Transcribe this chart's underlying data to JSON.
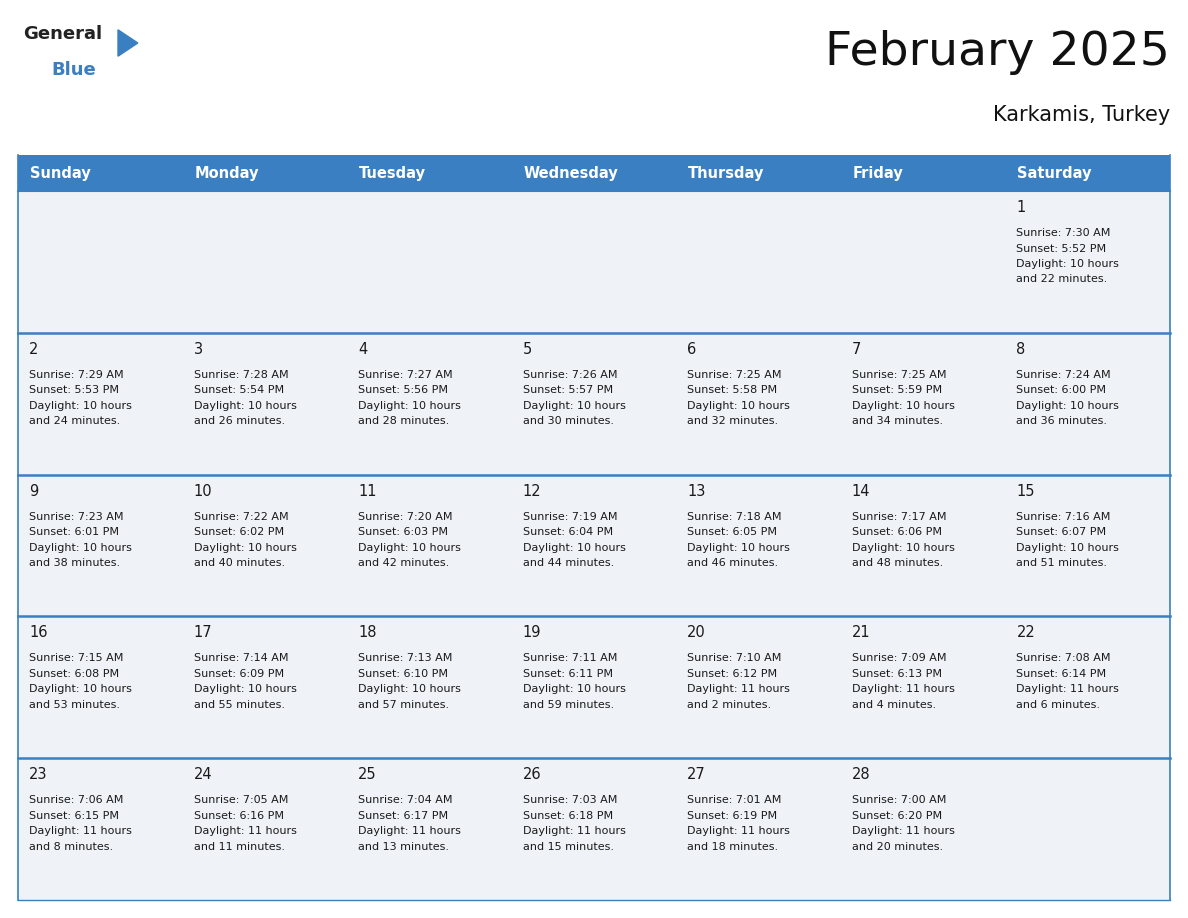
{
  "title": "February 2025",
  "subtitle": "Karkamis, Turkey",
  "header_color": "#3a7fc1",
  "header_text_color": "#ffffff",
  "cell_bg": "#eff3f8",
  "border_color": "#3a7fc1",
  "text_color": "#1a1a1a",
  "day_headers": [
    "Sunday",
    "Monday",
    "Tuesday",
    "Wednesday",
    "Thursday",
    "Friday",
    "Saturday"
  ],
  "days": [
    {
      "day": 1,
      "col": 6,
      "row": 0,
      "sunrise": "7:30 AM",
      "sunset": "5:52 PM",
      "daylight_hours": 10,
      "daylight_minutes": 22
    },
    {
      "day": 2,
      "col": 0,
      "row": 1,
      "sunrise": "7:29 AM",
      "sunset": "5:53 PM",
      "daylight_hours": 10,
      "daylight_minutes": 24
    },
    {
      "day": 3,
      "col": 1,
      "row": 1,
      "sunrise": "7:28 AM",
      "sunset": "5:54 PM",
      "daylight_hours": 10,
      "daylight_minutes": 26
    },
    {
      "day": 4,
      "col": 2,
      "row": 1,
      "sunrise": "7:27 AM",
      "sunset": "5:56 PM",
      "daylight_hours": 10,
      "daylight_minutes": 28
    },
    {
      "day": 5,
      "col": 3,
      "row": 1,
      "sunrise": "7:26 AM",
      "sunset": "5:57 PM",
      "daylight_hours": 10,
      "daylight_minutes": 30
    },
    {
      "day": 6,
      "col": 4,
      "row": 1,
      "sunrise": "7:25 AM",
      "sunset": "5:58 PM",
      "daylight_hours": 10,
      "daylight_minutes": 32
    },
    {
      "day": 7,
      "col": 5,
      "row": 1,
      "sunrise": "7:25 AM",
      "sunset": "5:59 PM",
      "daylight_hours": 10,
      "daylight_minutes": 34
    },
    {
      "day": 8,
      "col": 6,
      "row": 1,
      "sunrise": "7:24 AM",
      "sunset": "6:00 PM",
      "daylight_hours": 10,
      "daylight_minutes": 36
    },
    {
      "day": 9,
      "col": 0,
      "row": 2,
      "sunrise": "7:23 AM",
      "sunset": "6:01 PM",
      "daylight_hours": 10,
      "daylight_minutes": 38
    },
    {
      "day": 10,
      "col": 1,
      "row": 2,
      "sunrise": "7:22 AM",
      "sunset": "6:02 PM",
      "daylight_hours": 10,
      "daylight_minutes": 40
    },
    {
      "day": 11,
      "col": 2,
      "row": 2,
      "sunrise": "7:20 AM",
      "sunset": "6:03 PM",
      "daylight_hours": 10,
      "daylight_minutes": 42
    },
    {
      "day": 12,
      "col": 3,
      "row": 2,
      "sunrise": "7:19 AM",
      "sunset": "6:04 PM",
      "daylight_hours": 10,
      "daylight_minutes": 44
    },
    {
      "day": 13,
      "col": 4,
      "row": 2,
      "sunrise": "7:18 AM",
      "sunset": "6:05 PM",
      "daylight_hours": 10,
      "daylight_minutes": 46
    },
    {
      "day": 14,
      "col": 5,
      "row": 2,
      "sunrise": "7:17 AM",
      "sunset": "6:06 PM",
      "daylight_hours": 10,
      "daylight_minutes": 48
    },
    {
      "day": 15,
      "col": 6,
      "row": 2,
      "sunrise": "7:16 AM",
      "sunset": "6:07 PM",
      "daylight_hours": 10,
      "daylight_minutes": 51
    },
    {
      "day": 16,
      "col": 0,
      "row": 3,
      "sunrise": "7:15 AM",
      "sunset": "6:08 PM",
      "daylight_hours": 10,
      "daylight_minutes": 53
    },
    {
      "day": 17,
      "col": 1,
      "row": 3,
      "sunrise": "7:14 AM",
      "sunset": "6:09 PM",
      "daylight_hours": 10,
      "daylight_minutes": 55
    },
    {
      "day": 18,
      "col": 2,
      "row": 3,
      "sunrise": "7:13 AM",
      "sunset": "6:10 PM",
      "daylight_hours": 10,
      "daylight_minutes": 57
    },
    {
      "day": 19,
      "col": 3,
      "row": 3,
      "sunrise": "7:11 AM",
      "sunset": "6:11 PM",
      "daylight_hours": 10,
      "daylight_minutes": 59
    },
    {
      "day": 20,
      "col": 4,
      "row": 3,
      "sunrise": "7:10 AM",
      "sunset": "6:12 PM",
      "daylight_hours": 11,
      "daylight_minutes": 2
    },
    {
      "day": 21,
      "col": 5,
      "row": 3,
      "sunrise": "7:09 AM",
      "sunset": "6:13 PM",
      "daylight_hours": 11,
      "daylight_minutes": 4
    },
    {
      "day": 22,
      "col": 6,
      "row": 3,
      "sunrise": "7:08 AM",
      "sunset": "6:14 PM",
      "daylight_hours": 11,
      "daylight_minutes": 6
    },
    {
      "day": 23,
      "col": 0,
      "row": 4,
      "sunrise": "7:06 AM",
      "sunset": "6:15 PM",
      "daylight_hours": 11,
      "daylight_minutes": 8
    },
    {
      "day": 24,
      "col": 1,
      "row": 4,
      "sunrise": "7:05 AM",
      "sunset": "6:16 PM",
      "daylight_hours": 11,
      "daylight_minutes": 11
    },
    {
      "day": 25,
      "col": 2,
      "row": 4,
      "sunrise": "7:04 AM",
      "sunset": "6:17 PM",
      "daylight_hours": 11,
      "daylight_minutes": 13
    },
    {
      "day": 26,
      "col": 3,
      "row": 4,
      "sunrise": "7:03 AM",
      "sunset": "6:18 PM",
      "daylight_hours": 11,
      "daylight_minutes": 15
    },
    {
      "day": 27,
      "col": 4,
      "row": 4,
      "sunrise": "7:01 AM",
      "sunset": "6:19 PM",
      "daylight_hours": 11,
      "daylight_minutes": 18
    },
    {
      "day": 28,
      "col": 5,
      "row": 4,
      "sunrise": "7:00 AM",
      "sunset": "6:20 PM",
      "daylight_hours": 11,
      "daylight_minutes": 20
    }
  ],
  "num_rows": 5,
  "num_cols": 7,
  "fig_width": 11.88,
  "fig_height": 9.18,
  "dpi": 100
}
